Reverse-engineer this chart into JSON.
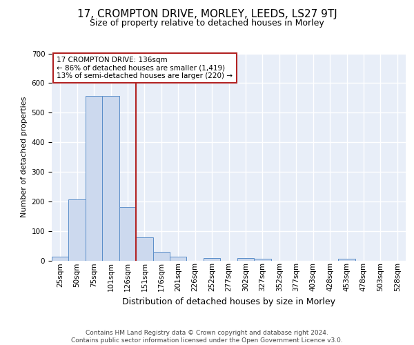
{
  "title_line1": "17, CROMPTON DRIVE, MORLEY, LEEDS, LS27 9TJ",
  "title_line2": "Size of property relative to detached houses in Morley",
  "xlabel": "Distribution of detached houses by size in Morley",
  "ylabel": "Number of detached properties",
  "footnote": "Contains HM Land Registry data © Crown copyright and database right 2024.\nContains public sector information licensed under the Open Government Licence v3.0.",
  "bin_labels": [
    "25sqm",
    "50sqm",
    "75sqm",
    "101sqm",
    "126sqm",
    "151sqm",
    "176sqm",
    "201sqm",
    "226sqm",
    "252sqm",
    "277sqm",
    "302sqm",
    "327sqm",
    "352sqm",
    "377sqm",
    "403sqm",
    "428sqm",
    "453sqm",
    "478sqm",
    "503sqm",
    "528sqm"
  ],
  "bar_heights": [
    12,
    207,
    557,
    557,
    180,
    78,
    30,
    13,
    0,
    9,
    0,
    9,
    7,
    0,
    0,
    0,
    0,
    5,
    0,
    0,
    0
  ],
  "bar_color": "#ccd9ee",
  "bar_edge_color": "#5b8ec9",
  "background_color": "#e8eef8",
  "grid_color": "#ffffff",
  "vline_color": "#b22222",
  "annotation_text": "17 CROMPTON DRIVE: 136sqm\n← 86% of detached houses are smaller (1,419)\n13% of semi-detached houses are larger (220) →",
  "annotation_box_color": "#ffffff",
  "annotation_box_edge": "#b22222",
  "ylim": [
    0,
    700
  ],
  "yticks": [
    0,
    100,
    200,
    300,
    400,
    500,
    600,
    700
  ],
  "title1_fontsize": 11,
  "title2_fontsize": 9,
  "xlabel_fontsize": 9,
  "ylabel_fontsize": 8,
  "tick_fontsize": 7.5,
  "annot_fontsize": 7.5,
  "footnote_fontsize": 6.5
}
